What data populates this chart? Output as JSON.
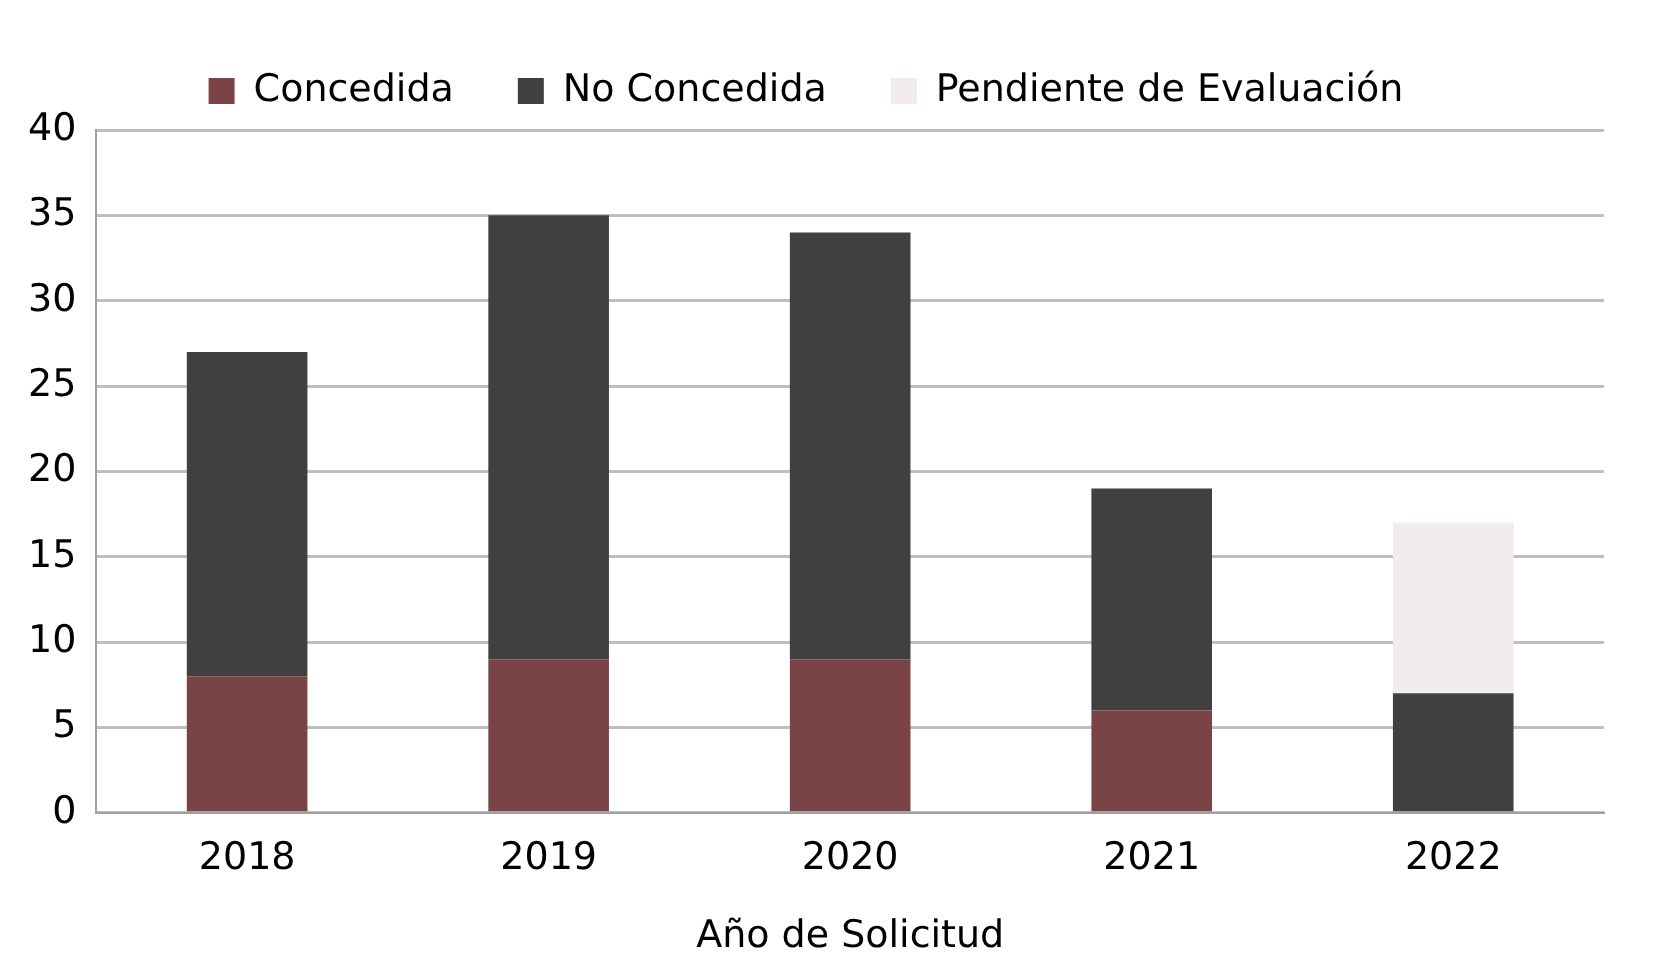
{
  "chart_data": {
    "type": "bar",
    "stacked": true,
    "xlabel": "Año de Solicitud",
    "categories": [
      "2018",
      "2019",
      "2020",
      "2021",
      "2022"
    ],
    "series": [
      {
        "name": "Concedida",
        "color": "#7a4446",
        "values": [
          8,
          9,
          9,
          6,
          null
        ]
      },
      {
        "name": "No Concedida",
        "color": "#404040",
        "values": [
          19,
          26,
          25,
          13,
          7
        ]
      },
      {
        "name": "Pendiente de Evaluación",
        "color": "#f2ecec",
        "values": [
          null,
          null,
          null,
          null,
          10
        ]
      }
    ],
    "ylim": [
      0,
      40
    ],
    "yticks": [
      0,
      5,
      10,
      15,
      20,
      25,
      30,
      35,
      40
    ],
    "grid": "y",
    "legend": "top"
  }
}
